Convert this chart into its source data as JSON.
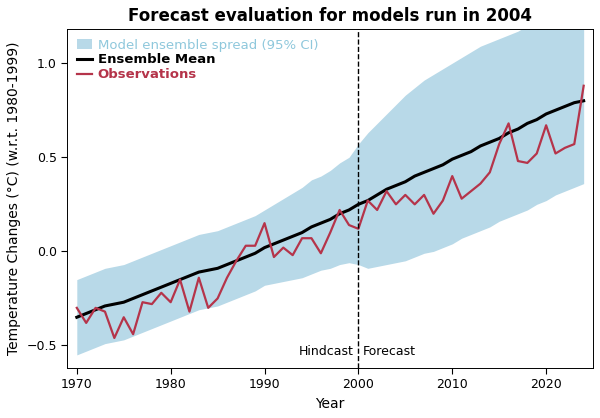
{
  "title": "Forecast evaluation for models run in 2004",
  "xlabel": "Year",
  "ylabel": "Temperature Changes (°C) (w.r.t. 1980-1999)",
  "xlim": [
    1969,
    2025
  ],
  "ylim": [
    -0.62,
    1.18
  ],
  "yticks": [
    -0.5,
    0.0,
    0.5,
    1.0
  ],
  "xticks": [
    1970,
    1980,
    1990,
    2000,
    2010,
    2020
  ],
  "dividing_year": 2000,
  "hindcast_label": "Hindcast",
  "forecast_label": "Forecast",
  "ensemble_color": "#b8d9e8",
  "ensemble_label": "Model ensemble spread (95% CI)",
  "mean_color": "#000000",
  "mean_label": "Ensemble Mean",
  "obs_color": "#b5344a",
  "obs_label": "Observations",
  "ensemble_mean_years": [
    1970,
    1971,
    1972,
    1973,
    1974,
    1975,
    1976,
    1977,
    1978,
    1979,
    1980,
    1981,
    1982,
    1983,
    1984,
    1985,
    1986,
    1987,
    1988,
    1989,
    1990,
    1991,
    1992,
    1993,
    1994,
    1995,
    1996,
    1997,
    1998,
    1999,
    2000,
    2001,
    2002,
    2003,
    2004,
    2005,
    2006,
    2007,
    2008,
    2009,
    2010,
    2011,
    2012,
    2013,
    2014,
    2015,
    2016,
    2017,
    2018,
    2019,
    2020,
    2021,
    2022,
    2023,
    2024
  ],
  "ensemble_mean_values": [
    -0.35,
    -0.33,
    -0.31,
    -0.29,
    -0.28,
    -0.27,
    -0.25,
    -0.23,
    -0.21,
    -0.19,
    -0.17,
    -0.15,
    -0.13,
    -0.11,
    -0.1,
    -0.09,
    -0.07,
    -0.05,
    -0.03,
    -0.01,
    0.02,
    0.04,
    0.06,
    0.08,
    0.1,
    0.13,
    0.15,
    0.17,
    0.2,
    0.22,
    0.25,
    0.27,
    0.3,
    0.33,
    0.35,
    0.37,
    0.4,
    0.42,
    0.44,
    0.46,
    0.49,
    0.51,
    0.53,
    0.56,
    0.58,
    0.6,
    0.63,
    0.65,
    0.68,
    0.7,
    0.73,
    0.75,
    0.77,
    0.79,
    0.8
  ],
  "ci_upper_values": [
    -0.15,
    -0.13,
    -0.11,
    -0.09,
    -0.08,
    -0.07,
    -0.05,
    -0.03,
    -0.01,
    0.01,
    0.03,
    0.05,
    0.07,
    0.09,
    0.1,
    0.11,
    0.13,
    0.15,
    0.17,
    0.19,
    0.22,
    0.25,
    0.28,
    0.31,
    0.34,
    0.38,
    0.4,
    0.43,
    0.47,
    0.5,
    0.57,
    0.63,
    0.68,
    0.73,
    0.78,
    0.83,
    0.87,
    0.91,
    0.94,
    0.97,
    1.0,
    1.03,
    1.06,
    1.09,
    1.11,
    1.13,
    1.15,
    1.17,
    1.2,
    1.22,
    1.24,
    1.27,
    1.29,
    1.31,
    1.33
  ],
  "ci_lower_values": [
    -0.55,
    -0.53,
    -0.51,
    -0.49,
    -0.48,
    -0.47,
    -0.45,
    -0.43,
    -0.41,
    -0.39,
    -0.37,
    -0.35,
    -0.33,
    -0.31,
    -0.3,
    -0.29,
    -0.27,
    -0.25,
    -0.23,
    -0.21,
    -0.18,
    -0.17,
    -0.16,
    -0.15,
    -0.14,
    -0.12,
    -0.1,
    -0.09,
    -0.07,
    -0.06,
    -0.07,
    -0.09,
    -0.08,
    -0.07,
    -0.06,
    -0.05,
    -0.03,
    -0.01,
    0.0,
    0.02,
    0.04,
    0.07,
    0.09,
    0.11,
    0.13,
    0.16,
    0.18,
    0.2,
    0.22,
    0.25,
    0.27,
    0.3,
    0.32,
    0.34,
    0.36
  ],
  "obs_years": [
    1970,
    1971,
    1972,
    1973,
    1974,
    1975,
    1976,
    1977,
    1978,
    1979,
    1980,
    1981,
    1982,
    1983,
    1984,
    1985,
    1986,
    1987,
    1988,
    1989,
    1990,
    1991,
    1992,
    1993,
    1994,
    1995,
    1996,
    1997,
    1998,
    1999,
    2000,
    2001,
    2002,
    2003,
    2004,
    2005,
    2006,
    2007,
    2008,
    2009,
    2010,
    2011,
    2012,
    2013,
    2014,
    2015,
    2016,
    2017,
    2018,
    2019,
    2020,
    2021,
    2022,
    2023,
    2024
  ],
  "obs_values": [
    -0.3,
    -0.38,
    -0.3,
    -0.32,
    -0.46,
    -0.35,
    -0.44,
    -0.27,
    -0.28,
    -0.22,
    -0.27,
    -0.15,
    -0.32,
    -0.14,
    -0.3,
    -0.25,
    -0.14,
    -0.05,
    0.03,
    0.03,
    0.15,
    -0.03,
    0.02,
    -0.02,
    0.07,
    0.07,
    -0.01,
    0.1,
    0.22,
    0.14,
    0.12,
    0.27,
    0.22,
    0.32,
    0.25,
    0.3,
    0.25,
    0.3,
    0.2,
    0.27,
    0.4,
    0.28,
    0.32,
    0.36,
    0.42,
    0.57,
    0.68,
    0.48,
    0.47,
    0.52,
    0.67,
    0.52,
    0.55,
    0.57,
    0.88
  ],
  "background_color": "#ffffff",
  "title_fontsize": 12,
  "axis_label_fontsize": 10,
  "tick_fontsize": 9,
  "legend_fontsize": 9.5
}
